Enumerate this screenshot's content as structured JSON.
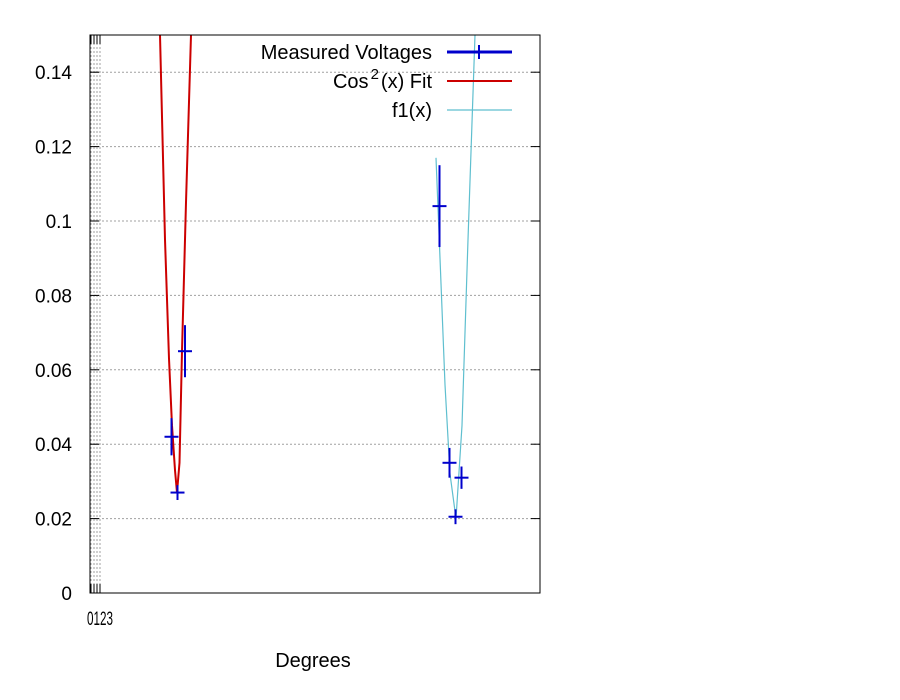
{
  "chart_data": {
    "type": "scatter",
    "title": "",
    "xlabel": "Degrees",
    "ylabel": "",
    "ylim": [
      0,
      0.15
    ],
    "y_ticks": [
      "0",
      "0.02",
      "0.04",
      "0.06",
      "0.08",
      "0.1",
      "0.12",
      "0.14"
    ],
    "x_ticks_overlapping": [
      "0",
      "1",
      "2",
      "3"
    ],
    "x_tick_text_as_rendered": "0123",
    "grid": true,
    "legend_position": "top-right",
    "series": [
      {
        "name": "Measured Voltages",
        "kind": "points-with-error-bars",
        "color": "#0000cc",
        "points": [
          {
            "x": 171.5,
            "y": 0.042,
            "err": 0.005
          },
          {
            "x": 177.5,
            "y": 0.027,
            "err": 0.002
          },
          {
            "x": 185.0,
            "y": 0.065,
            "err": 0.007
          },
          {
            "x": 439.5,
            "y": 0.104,
            "err": 0.011
          },
          {
            "x": 449.5,
            "y": 0.035,
            "err": 0.004
          },
          {
            "x": 455.5,
            "y": 0.0205,
            "err": 0.002
          },
          {
            "x": 461.5,
            "y": 0.031,
            "err": 0.003
          }
        ]
      },
      {
        "name": "Cos^2(x) Fit",
        "kind": "curve",
        "color": "#cc0000",
        "vertex_x": 177.0,
        "vertex_y": 0.027,
        "points": [
          [
            160.0,
            0.15
          ],
          [
            165.0,
            0.095
          ],
          [
            169.0,
            0.063
          ],
          [
            172.0,
            0.045
          ],
          [
            175.0,
            0.033
          ],
          [
            177.0,
            0.027
          ],
          [
            179.5,
            0.035
          ],
          [
            182.0,
            0.065
          ],
          [
            186.0,
            0.105
          ],
          [
            191.0,
            0.15
          ]
        ]
      },
      {
        "name": "f1(x)",
        "kind": "curve",
        "color": "#5fbfcf",
        "vertex_x": 456.0,
        "vertex_y": 0.02,
        "points": [
          [
            436.0,
            0.117
          ],
          [
            440.0,
            0.09
          ],
          [
            445.0,
            0.056
          ],
          [
            450.0,
            0.032
          ],
          [
            456.0,
            0.02
          ],
          [
            462.0,
            0.045
          ],
          [
            468.0,
            0.095
          ],
          [
            475.0,
            0.15
          ]
        ]
      }
    ],
    "legend": {
      "entries": [
        {
          "label": "Measured Voltages",
          "label_parts": [
            "Measured Voltages"
          ],
          "series": 0
        },
        {
          "label": "Cos^2(x) Fit",
          "label_parts": [
            "Cos",
            "2",
            "(x) Fit"
          ],
          "series": 1
        },
        {
          "label": "f1(x)",
          "label_parts": [
            "f1(x)"
          ],
          "series": 2
        }
      ]
    }
  }
}
